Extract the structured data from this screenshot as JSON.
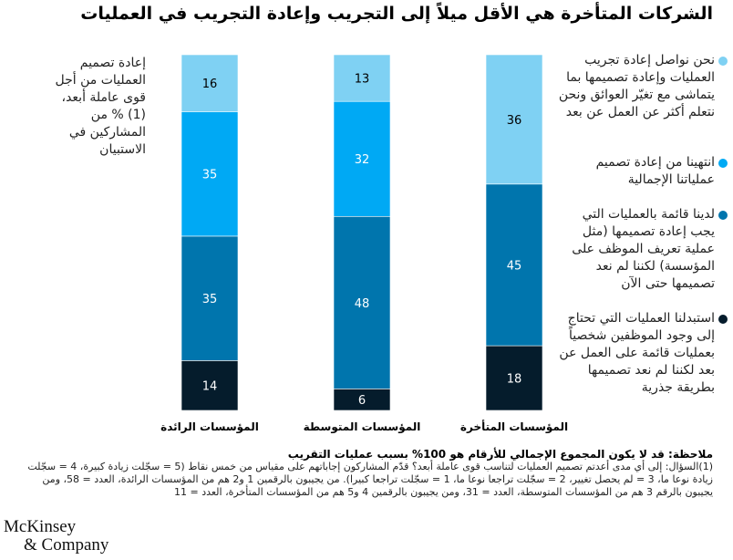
{
  "title": "الشركات المتأخرة هي الأقل ميلاً إلى التجريب وإعادة التجريب في العمليات",
  "colors": {
    "s1": "#7fd1f3",
    "s2": "#00a9f4",
    "s3": "#0075ad",
    "s4": "#051c2c"
  },
  "chart_data": {
    "type": "bar",
    "stacked": true,
    "ylabel": "إعادة تصميم العمليات من أجل قوى عاملة أبعد،(1) % من المشاركين في الاستبيان",
    "categories": [
      "المؤسسات الرائدة",
      "المؤسسات المتوسطة",
      "المؤسسات المتأخرة"
    ],
    "series": [
      {
        "name": "استبدلنا العمليات التي تحتاج إلى وجود الموظفين شخصياً بعمليات قائمة على العمل عن بعد لكننا لم نعد تصميمها بطريقة جذرية",
        "values": [
          14,
          6,
          18
        ]
      },
      {
        "name": "لدينا قائمة بالعمليات التي يجب إعادة تصميمها (مثل عملية تعريف الموظف على المؤسسة) لكننا لم نعد تصميمها حتى الآن",
        "values": [
          35,
          48,
          45
        ]
      },
      {
        "name": "انتهينا من إعادة تصميم عملياتنا الإجمالية",
        "values": [
          35,
          32,
          0
        ]
      },
      {
        "name": "نحن نواصل إعادة تجريب العمليات وإعادة تصميمها بما يتماشى مع تغيّر العوائق ونحن نتعلم أكثر عن العمل عن بعد",
        "values": [
          16,
          13,
          36
        ]
      }
    ],
    "legend": "right"
  },
  "note": {
    "heading": "ملاحظة: قد لا يكون المجموع الإجمالي للأرقام هو 100% بسبب عمليات التقريب",
    "body": "(1)السؤال: إلى أي مدى أعدتم تصميم العمليات لتناسب قوى عاملة أبعد؟ قدّم المشاركون إجاباتهم على مقياس من خمس نقاط (5 = سجّلت زيادة كبيرة، 4 = سجّلت زيادة نوعا ما، 3 = لم يحصل تغيير، 2 = سجّلت تراجعا نوعا ما، 1 = سجّلت تراجعا كبيرا). من يجيبون بالرقمين 1 و2 هم من المؤسسات الرائدة، العدد = 58، ومن يجيبون بالرقم 3 هم من المؤسسات المتوسطة، العدد = 31، ومن يجيبون بالرقمين 4 و5 هم من المؤسسات المتأخرة، العدد = 11"
  },
  "logo": {
    "line1": "McKinsey",
    "line2": "& Company"
  }
}
